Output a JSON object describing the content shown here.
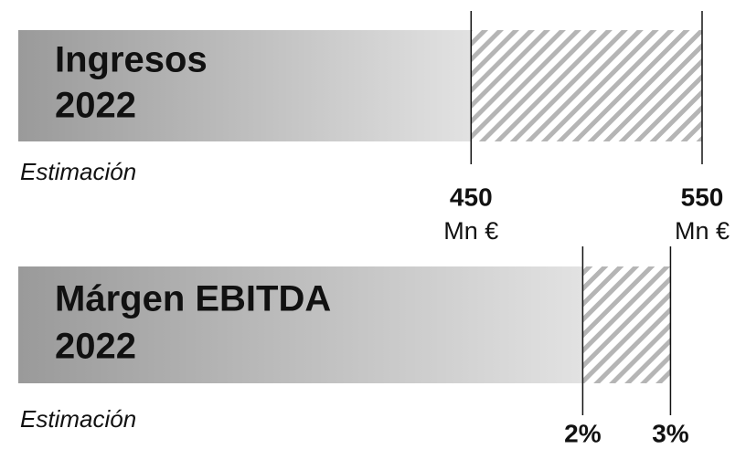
{
  "chart_data": [
    {
      "type": "range",
      "title_lines": [
        "Ingresos",
        "2022"
      ],
      "note": "Estimación",
      "values": [
        450,
        550
      ],
      "unit": "Mn €",
      "xlim": [
        254,
        569
      ]
    },
    {
      "type": "range",
      "title_lines": [
        "Márgen EBITDA",
        "2022"
      ],
      "note": "Estimación",
      "values": [
        2,
        3
      ],
      "value_labels": [
        "2%",
        "3%"
      ],
      "xlim": [
        -4.43,
        3.86
      ]
    }
  ]
}
